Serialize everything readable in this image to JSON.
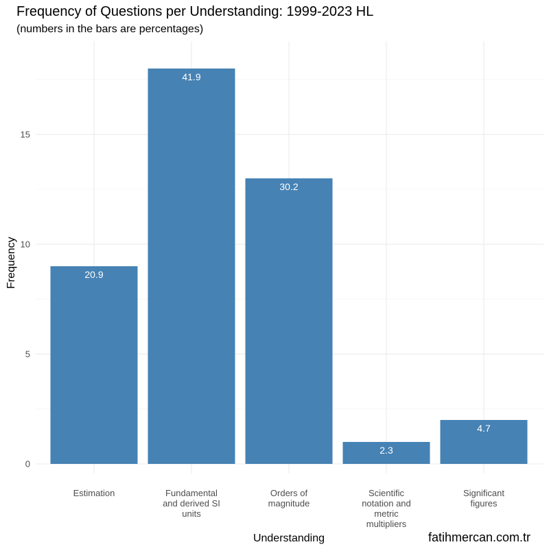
{
  "chart_data": {
    "type": "bar",
    "title": "Frequency of Questions per Understanding: 1999-2023 HL",
    "subtitle": "(numbers in the bars are percentages)",
    "xlabel": "Understanding",
    "ylabel": "Frequency",
    "categories": [
      [
        "Estimation"
      ],
      [
        "Fundamental",
        "and derived SI",
        "units"
      ],
      [
        "Orders of",
        "magnitude"
      ],
      [
        "Scientific",
        "notation and",
        "metric",
        "multipliers"
      ],
      [
        "Significant",
        "figures"
      ]
    ],
    "values": [
      9,
      18,
      13,
      1,
      2
    ],
    "data_labels": [
      "20.9",
      "41.9",
      "30.2",
      "2.3",
      "4.7"
    ],
    "ylim": [
      0,
      18.9
    ],
    "y_ticks": [
      0,
      5,
      10,
      15
    ],
    "grid": true,
    "bar_color": "#4682B4",
    "caption": "fatihmercan.com.tr"
  }
}
